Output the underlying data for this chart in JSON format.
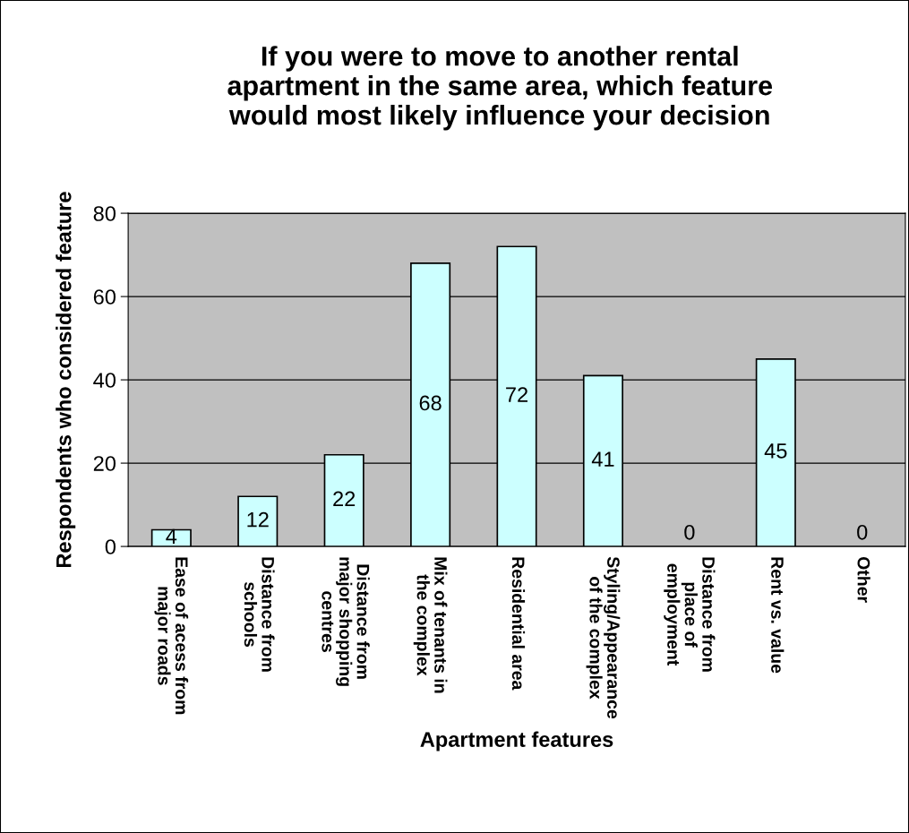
{
  "chart_data": {
    "type": "bar",
    "title": "If you were to move to another rental\napartment in the same area, which feature\nwould most likely influence your decision",
    "xlabel": "Apartment features",
    "ylabel": "Respondents who considered feature",
    "categories": [
      "Ease of acess from\nmajor roads",
      "Distance from\nschools",
      "Distance from\nmajor shopping\ncentres",
      "Mix of tenants in\nthe complex",
      "Residential area",
      "Styling/Appearance\nof the complex",
      "Distance from\nplace of\nemployment",
      "Rent vs. value",
      "Other"
    ],
    "values": [
      4,
      12,
      22,
      68,
      72,
      41,
      0,
      45,
      0
    ],
    "color": "#ccffff",
    "ylim": [
      0,
      80
    ],
    "yticks": [
      0,
      20,
      40,
      60,
      80
    ],
    "grid": "y",
    "data_labels": true,
    "legend": false
  }
}
